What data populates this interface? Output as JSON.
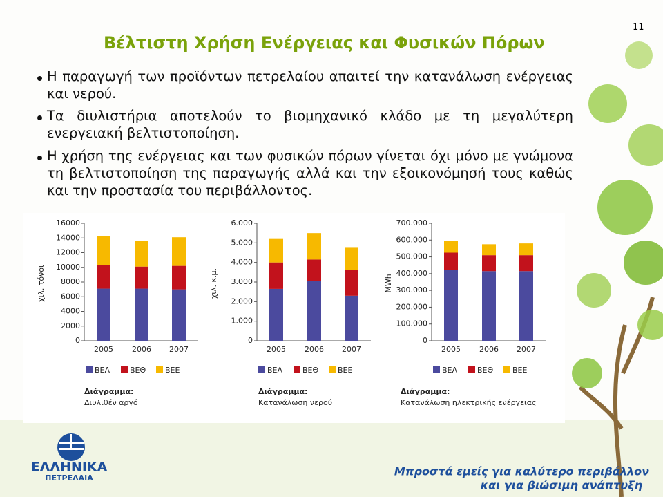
{
  "page_number": "11",
  "title": "Βέλτιστη Χρήση Ενέργειας και Φυσικών Πόρων",
  "bullets": [
    "Η παραγωγή των προϊόντων πετρελαίου απαιτεί την κατανάλωση ενέργειας και νερού.",
    "Τα διυλιστήρια αποτελούν το βιομηχανικό κλάδο με τη μεγαλύτερη ενεργειακή βελτιστοποίηση.",
    "Η χρήση της ενέργειας και των φυσικών πόρων γίνεται όχι μόνο με γνώμονα τη βελτιστοποίηση της παραγωγής αλλά και την εξοικονόμησή τους καθώς και την προστασία του περιβάλλοντος."
  ],
  "chart_data": [
    {
      "type": "stacked-bar",
      "title": "Διάγραμμα:",
      "subtitle": "Διυλιθέν αργό",
      "y_label": "χιλ. τόνοι",
      "categories": [
        "2005",
        "2006",
        "2007"
      ],
      "series": [
        {
          "name": "ΒΕΑ",
          "color": "#4b4a9e",
          "values": [
            7100,
            7100,
            7000
          ]
        },
        {
          "name": "ΒΕΘ",
          "color": "#c2121c",
          "values": [
            3200,
            3000,
            3200
          ]
        },
        {
          "name": "ΒΕΕ",
          "color": "#f7b900",
          "values": [
            4000,
            3500,
            3900
          ]
        }
      ],
      "ylim": [
        0,
        16000
      ],
      "yticks": [
        0,
        2000,
        4000,
        6000,
        8000,
        10000,
        12000,
        14000,
        16000
      ]
    },
    {
      "type": "stacked-bar",
      "title": "Διάγραμμα:",
      "subtitle": "Κατανάλωση νερού",
      "y_label": "χιλ. κ.μ.",
      "categories": [
        "2005",
        "2006",
        "2007"
      ],
      "series": [
        {
          "name": "ΒΕΑ",
          "color": "#4b4a9e",
          "values": [
            2650,
            3050,
            2300
          ]
        },
        {
          "name": "ΒΕΘ",
          "color": "#c2121c",
          "values": [
            1350,
            1100,
            1300
          ]
        },
        {
          "name": "ΒΕΕ",
          "color": "#f7b900",
          "values": [
            1200,
            1350,
            1150
          ]
        }
      ],
      "ylim": [
        0,
        6000
      ],
      "yticks": [
        {
          "value": 0,
          "label": "0"
        },
        {
          "value": 1000,
          "label": "1.000"
        },
        {
          "value": 2000,
          "label": "2.000"
        },
        {
          "value": 3000,
          "label": "3.000"
        },
        {
          "value": 4000,
          "label": "4.000"
        },
        {
          "value": 5000,
          "label": "5.000"
        },
        {
          "value": 6000,
          "label": "6.000"
        }
      ]
    },
    {
      "type": "stacked-bar",
      "title": "Διάγραμμα:",
      "subtitle": "Κατανάλωση ηλεκτρικής ενέργειας",
      "y_label": "MWh",
      "categories": [
        "2005",
        "2006",
        "2007"
      ],
      "series": [
        {
          "name": "ΒΕΑ",
          "color": "#4b4a9e",
          "values": [
            420000,
            415000,
            415000
          ]
        },
        {
          "name": "ΒΕΘ",
          "color": "#c2121c",
          "values": [
            105000,
            95000,
            95000
          ]
        },
        {
          "name": "ΒΕΕ",
          "color": "#f7b900",
          "values": [
            70000,
            65000,
            70000
          ]
        }
      ],
      "ylim": [
        0,
        700000
      ],
      "yticks": [
        {
          "value": 0,
          "label": "0"
        },
        {
          "value": 100000,
          "label": "100.000"
        },
        {
          "value": 200000,
          "label": "200.000"
        },
        {
          "value": 300000,
          "label": "300.000"
        },
        {
          "value": 400000,
          "label": "400.000"
        },
        {
          "value": 500000,
          "label": "500.000"
        },
        {
          "value": 600000,
          "label": "600.000"
        },
        {
          "value": 700000,
          "label": "700.000"
        }
      ]
    }
  ],
  "footer": {
    "logo_line1": "ΕΛΛΗΝΙΚΑ",
    "logo_line2": "ΠΕΤΡΕΛΑΙΑ",
    "tagline_line1": "Μπροστά εμείς για καλύτερο περιβάλλον",
    "tagline_line2": "και για βιώσιμη ανάπτυξη"
  }
}
